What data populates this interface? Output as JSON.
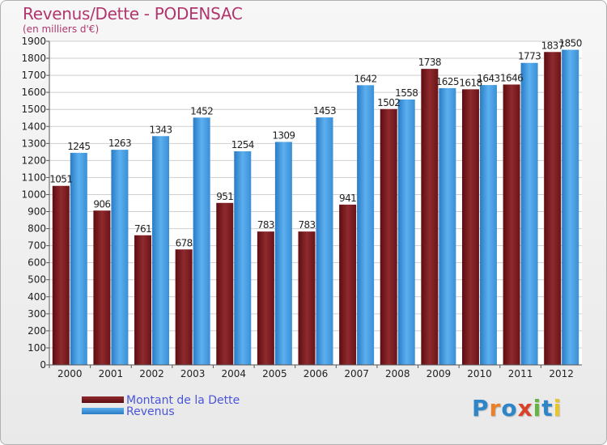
{
  "chart_data": {
    "type": "bar",
    "title": "Revenus/Dette - PODENSAC",
    "subtitle": "(en milliers d'€)",
    "categories": [
      "2000",
      "2001",
      "2002",
      "2003",
      "2004",
      "2005",
      "2006",
      "2007",
      "2008",
      "2009",
      "2010",
      "2011",
      "2012"
    ],
    "series": [
      {
        "name": "Montant de la Dette",
        "color": "#7a1a1e",
        "values": [
          1051,
          906,
          761,
          678,
          951,
          783,
          783,
          941,
          1502,
          1738,
          1618,
          1646,
          1837
        ],
        "labels": [
          "1051",
          "906",
          "761",
          "678",
          "951",
          "783",
          "783",
          "941",
          "1502",
          "1738",
          "1618",
          "1646",
          "1837"
        ]
      },
      {
        "name": "Revenus",
        "color": "#3d97e0",
        "values": [
          1245,
          1263,
          1343,
          1452,
          1254,
          1309,
          1453,
          1642,
          1558,
          1625,
          1643,
          1773,
          1850
        ],
        "labels": [
          "1245",
          "1263",
          "1343",
          "1452",
          "1254",
          "1309",
          "1453",
          "1642",
          "1558",
          "1625",
          "1643",
          "1773",
          "1850"
        ]
      }
    ],
    "ylim": [
      0,
      1900
    ],
    "yticks": [
      0,
      100,
      200,
      300,
      400,
      500,
      600,
      700,
      800,
      900,
      1000,
      1100,
      1200,
      1300,
      1400,
      1500,
      1600,
      1700,
      1800,
      1900
    ],
    "grid": true,
    "legend": "bottom-left"
  },
  "logo": {
    "text": "Proxiti",
    "colors": [
      "#2e86c8",
      "#e9812b",
      "#2e86c8",
      "#d9412b",
      "#62b544",
      "#2e86c8",
      "#e9c42b"
    ]
  }
}
